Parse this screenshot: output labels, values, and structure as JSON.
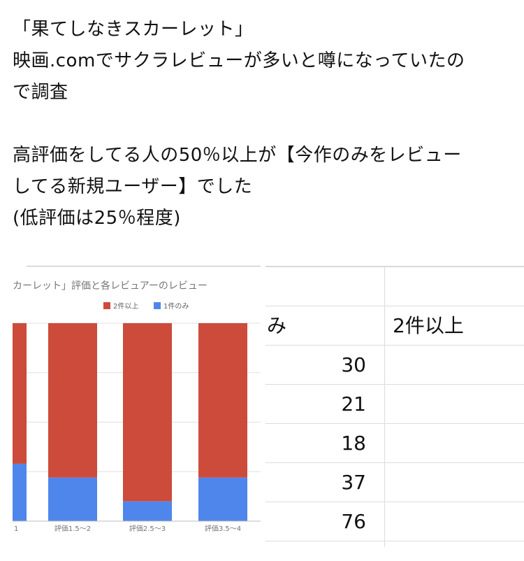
{
  "post": {
    "lines1": [
      "「果てしなきスカーレット」",
      "映画.comでサクラレビューが多いと噂になっていたの",
      "で調査"
    ],
    "lines2": [
      "高評価をしてる人の50％以上が【今作のみをレビュー",
      "してる新規ユーザー】でした",
      "(低評価は25％程度)"
    ]
  },
  "chart_data": {
    "type": "bar",
    "stacked": true,
    "title": "カーレット」評価と各レビュアーのレビュー",
    "categories": [
      "",
      "評価1.5〜2",
      "評価2.5〜3",
      "評価3.5〜4"
    ],
    "series": [
      {
        "name": "2件以上",
        "color": "#cc4b3b",
        "values": [
          71,
          78,
          90,
          78
        ]
      },
      {
        "name": "1件のみ",
        "color": "#4f86ec",
        "values": [
          29,
          22,
          10,
          22
        ]
      }
    ],
    "ylim": [
      0,
      100
    ],
    "legend": "top-center"
  },
  "sheet": {
    "header": [
      "み",
      "2件以上"
    ],
    "rows": [
      [
        "30",
        ""
      ],
      [
        "21",
        ""
      ],
      [
        "18",
        ""
      ],
      [
        "37",
        ""
      ],
      [
        "76",
        ""
      ]
    ]
  }
}
